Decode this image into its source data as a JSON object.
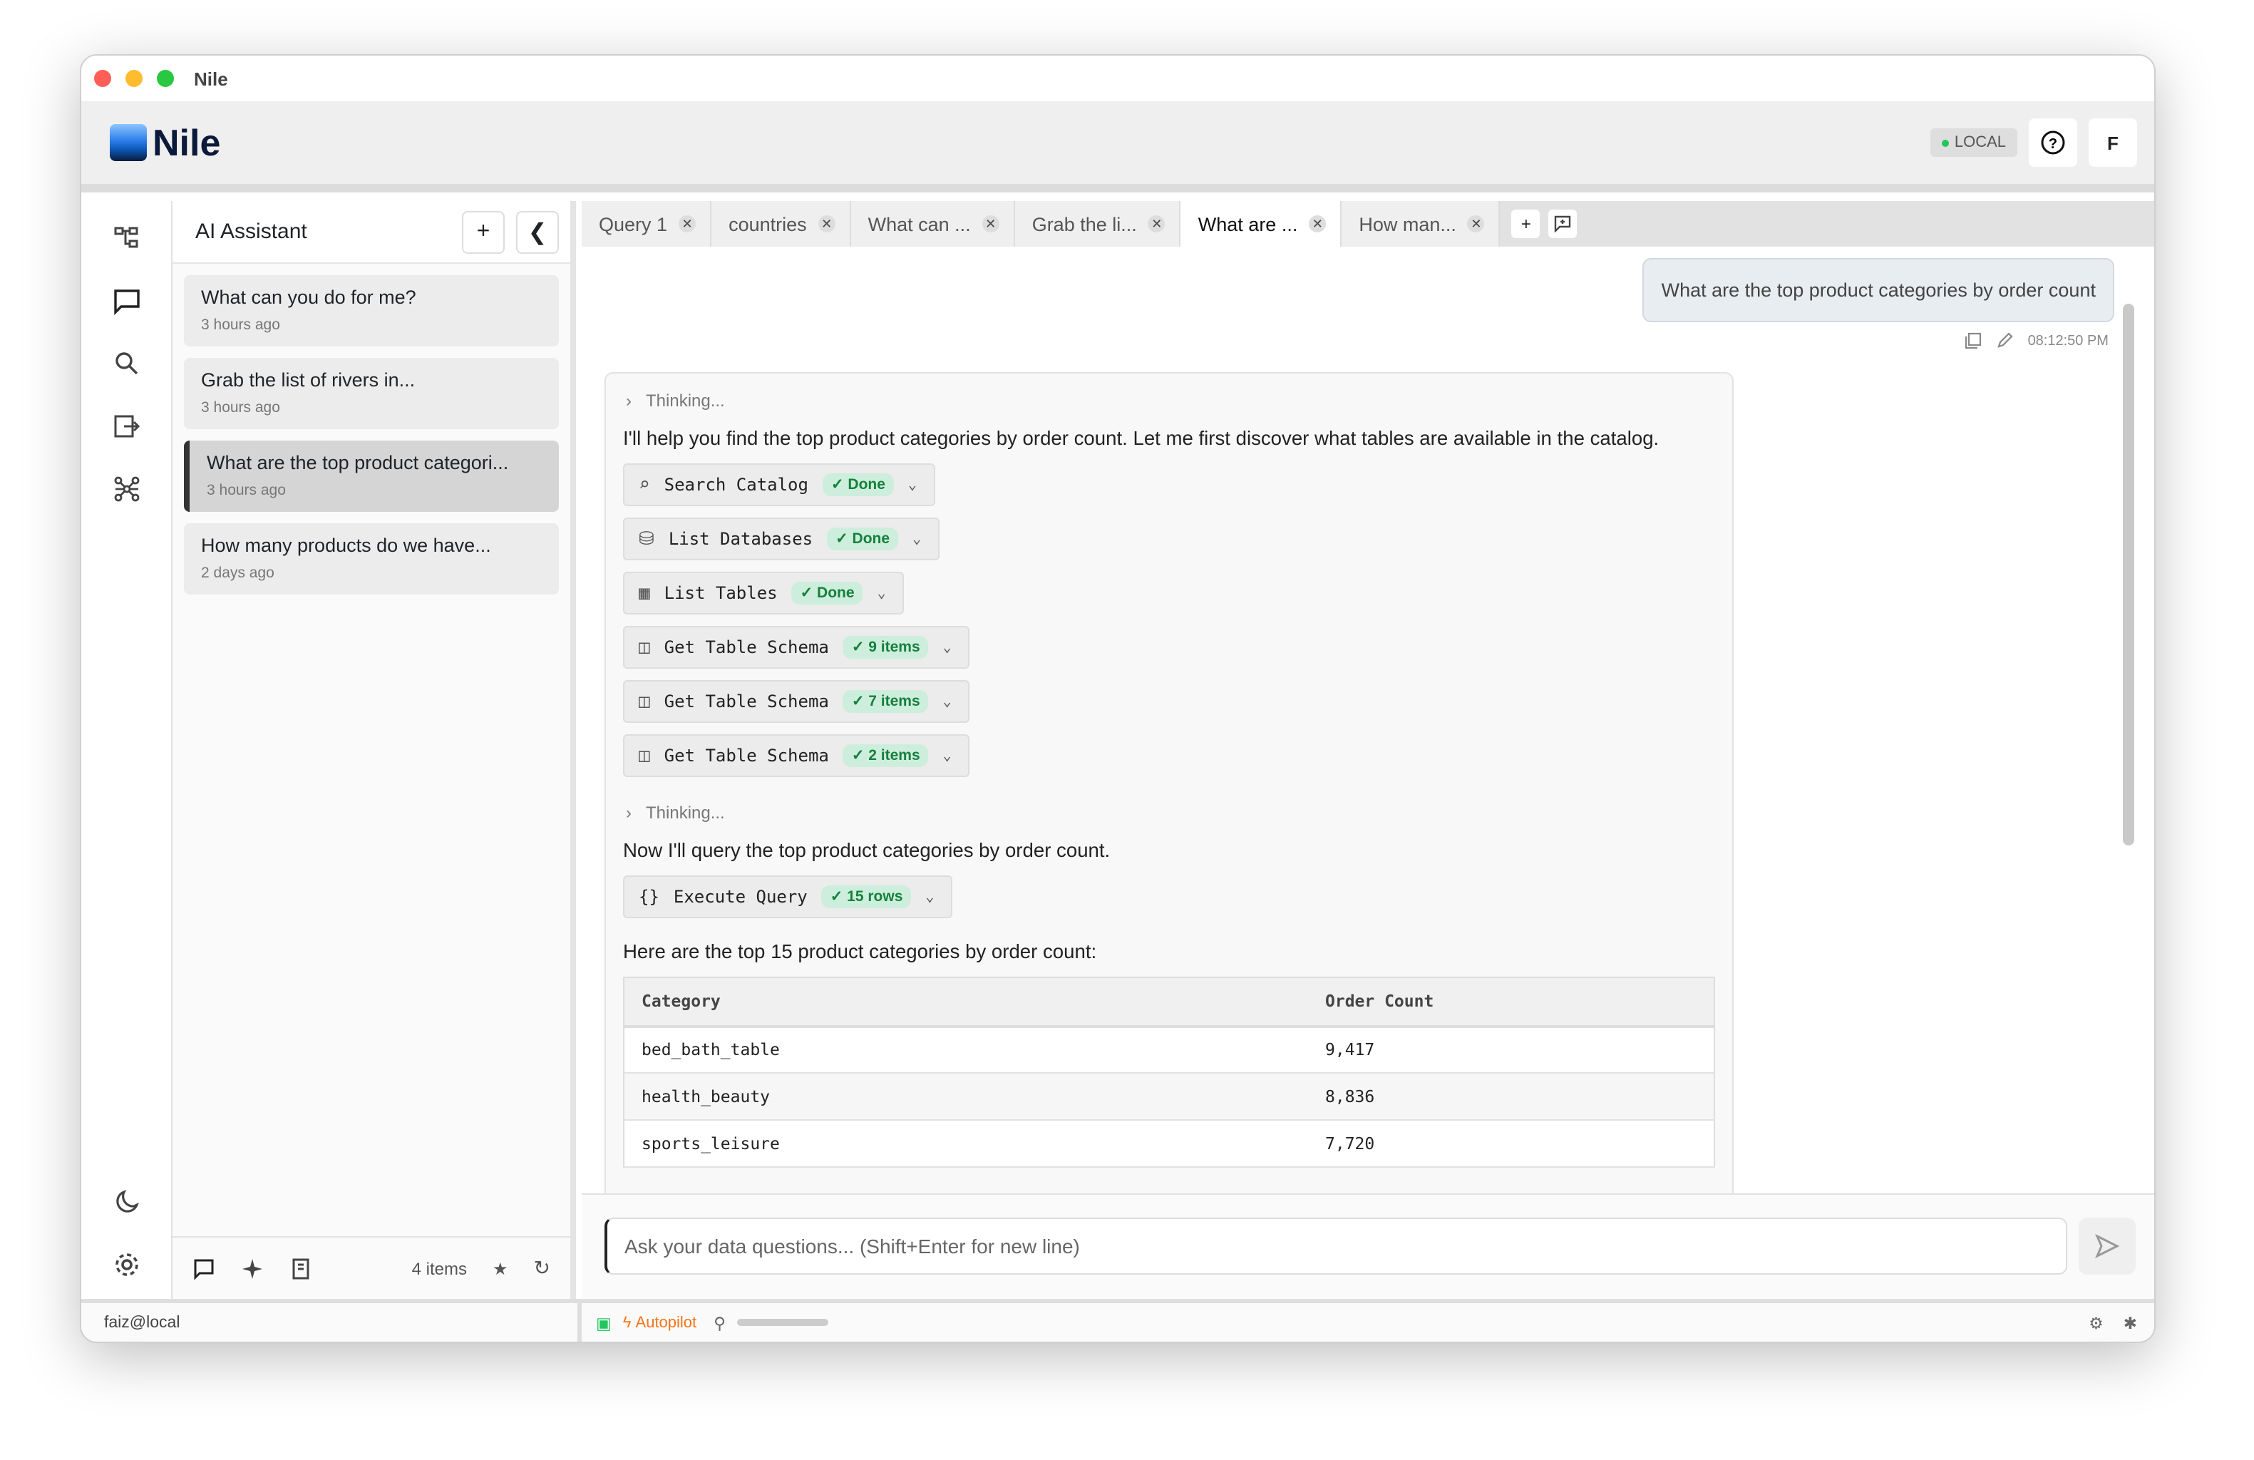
{
  "window": {
    "title": "Nile"
  },
  "header": {
    "brand": "Nile",
    "env_badge": "LOCAL",
    "help_icon": "question-circle-icon",
    "avatar": "F"
  },
  "rail": {
    "icons": [
      "schema-tree-icon",
      "chat-icon",
      "search-icon",
      "import-export-icon",
      "graph-network-icon",
      "moon-icon",
      "gear-icon"
    ]
  },
  "sidebar": {
    "title": "AI Assistant",
    "new_label": "+",
    "collapse_label": "❮",
    "conversations": [
      {
        "title": "What can you do for me?",
        "time": "3 hours ago",
        "active": false
      },
      {
        "title": "Grab the list of rivers in...",
        "time": "3 hours ago",
        "active": false
      },
      {
        "title": "What are the top product categori...",
        "time": "3 hours ago",
        "active": true
      },
      {
        "title": "How many products do we have...",
        "time": "2 days ago",
        "active": false
      }
    ],
    "footer": {
      "count": "4 items"
    }
  },
  "tabs": [
    {
      "label": "Query 1",
      "active": false
    },
    {
      "label": "countries",
      "active": false
    },
    {
      "label": "What can ...",
      "active": false
    },
    {
      "label": "Grab the li...",
      "active": false
    },
    {
      "label": "What are ...",
      "active": true
    },
    {
      "label": "How man...",
      "active": false
    }
  ],
  "chat": {
    "user_message": "What are the top product categories by order count",
    "user_time": "08:12:50 PM",
    "thinking_label": "Thinking...",
    "intro": "I'll help you find the top product categories by order count. Let me first discover what tables are available in the catalog.",
    "tools": [
      {
        "name": "Search Catalog",
        "badge": "✓ Done",
        "icon": "search-icon"
      },
      {
        "name": "List Databases",
        "badge": "✓ Done",
        "icon": "database-icon"
      },
      {
        "name": "List Tables",
        "badge": "✓ Done",
        "icon": "table-icon"
      },
      {
        "name": "Get Table Schema",
        "badge": "✓ 9 items",
        "icon": "columns-icon"
      },
      {
        "name": "Get Table Schema",
        "badge": "✓ 7 items",
        "icon": "columns-icon"
      },
      {
        "name": "Get Table Schema",
        "badge": "✓ 2 items",
        "icon": "columns-icon"
      }
    ],
    "second_text": "Now I'll query the top product categories by order count.",
    "query_tool": {
      "name": "Execute Query",
      "badge": "✓ 15 rows",
      "icon": "braces-icon"
    },
    "result_intro": "Here are the top 15 product categories by order count:",
    "table": {
      "headers": [
        "Category",
        "Order Count"
      ],
      "rows": [
        [
          "bed_bath_table",
          "9,417"
        ],
        [
          "health_beauty",
          "8,836"
        ],
        [
          "sports_leisure",
          "7,720"
        ]
      ]
    }
  },
  "input": {
    "placeholder": "Ask your data questions... (Shift+Enter for new line)"
  },
  "status": {
    "user": "faiz@local",
    "mode": "Autopilot"
  },
  "colors": {
    "accent_green": "#16803c",
    "autopilot": "#f97316",
    "badge_bg": "#cdeedc"
  }
}
